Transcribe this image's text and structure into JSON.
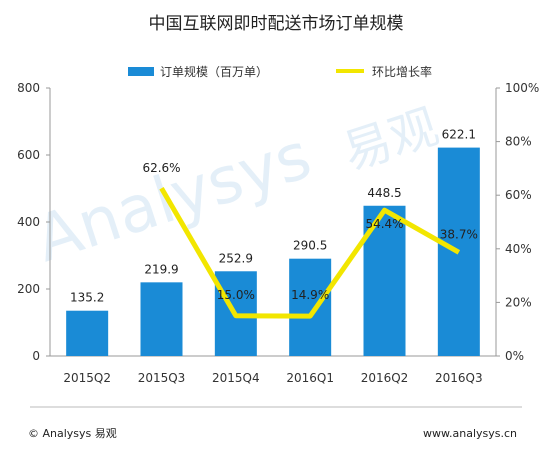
{
  "chart_data": {
    "type": "bar",
    "title": "中国互联网即时配送市场订单规模",
    "categories": [
      "2015Q2",
      "2015Q3",
      "2015Q4",
      "2016Q1",
      "2016Q2",
      "2016Q3"
    ],
    "series": [
      {
        "name": "订单规模（百万单）",
        "type": "bar",
        "axis": "left",
        "values": [
          135.2,
          219.9,
          252.9,
          290.5,
          448.5,
          622.1
        ],
        "labels": [
          "135.2",
          "219.9",
          "252.9",
          "290.5",
          "448.5",
          "622.1"
        ],
        "color": "#1a8bd6"
      },
      {
        "name": "环比增长率",
        "type": "line",
        "axis": "right",
        "values": [
          null,
          62.6,
          15.0,
          14.9,
          54.4,
          38.7
        ],
        "labels": [
          "",
          "62.6%",
          "15.0%",
          "14.9%",
          "54.4%",
          "38.7%"
        ],
        "color": "#f2e600"
      }
    ],
    "y_left": {
      "ylim": [
        0,
        800
      ],
      "ticks": [
        "0",
        "200",
        "400",
        "600",
        "800"
      ]
    },
    "y_right": {
      "ylim": [
        0,
        100
      ],
      "ticks": [
        "0%",
        "20%",
        "40%",
        "60%",
        "80%",
        "100%"
      ]
    },
    "legend_position": "top",
    "grid": false
  },
  "watermark": {
    "brand": "Analysys",
    "chinese": "易观"
  },
  "footer": {
    "left": "© Analysys 易观",
    "right": "www.analysys.cn"
  }
}
